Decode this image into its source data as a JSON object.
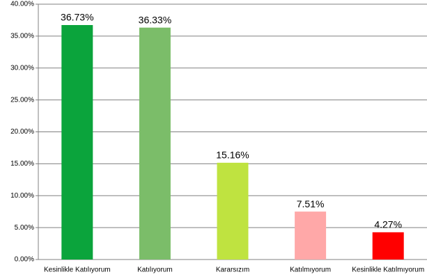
{
  "chart_data": {
    "type": "bar",
    "categories": [
      "Kesinlikle Katılıyorum",
      "Katılıyorum",
      "Kararsızım",
      "Katılmıyorum",
      "Kesinlikle Katılmıyorum"
    ],
    "values": [
      36.73,
      36.33,
      15.16,
      7.51,
      4.27
    ],
    "value_labels": [
      "36.73%",
      "36.33%",
      "15.16%",
      "7.51%",
      "4.27%"
    ],
    "colors": [
      "#0ba43c",
      "#7bbd69",
      "#bfe340",
      "#ffa8a8",
      "#ff0000"
    ],
    "ylim": [
      0,
      40
    ],
    "yticks": [
      {
        "value": 0,
        "label": "0.00%"
      },
      {
        "value": 5,
        "label": "5.00%"
      },
      {
        "value": 10,
        "label": "10.00%"
      },
      {
        "value": 15,
        "label": "15.00%"
      },
      {
        "value": 20,
        "label": "20.00%"
      },
      {
        "value": 25,
        "label": "25.00%"
      },
      {
        "value": 30,
        "label": "30.00%"
      },
      {
        "value": 35,
        "label": "35.00%"
      },
      {
        "value": 40,
        "label": "40.00%"
      }
    ],
    "grid": true
  }
}
